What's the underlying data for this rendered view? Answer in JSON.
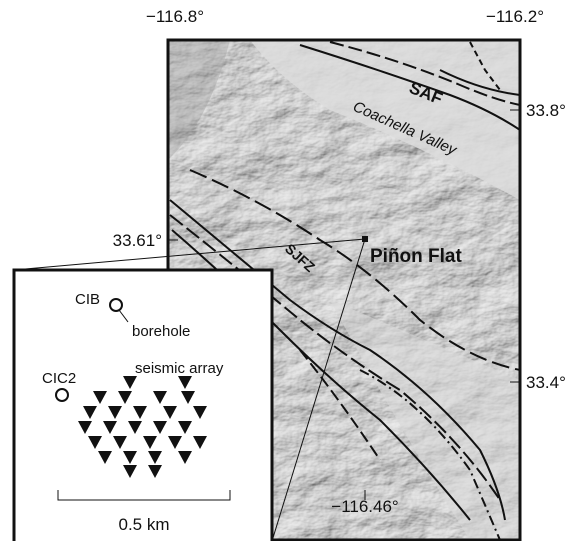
{
  "map": {
    "coordinates": {
      "lon_left": "−116.8°",
      "lon_right": "−116.2°",
      "lat_top": "33.8°",
      "lat_site": "33.61°",
      "lat_bottom": "33.4°",
      "lon_site": "−116.46°"
    },
    "features": {
      "saf": "SAF",
      "valley": "Coachella Valley",
      "sjfz": "SJFZ",
      "site": "Piñon Flat"
    },
    "inset": {
      "cib": "CIB",
      "borehole": "borehole",
      "cic2": "CIC2",
      "array": "seismic array",
      "scale": "0.5 km"
    }
  }
}
